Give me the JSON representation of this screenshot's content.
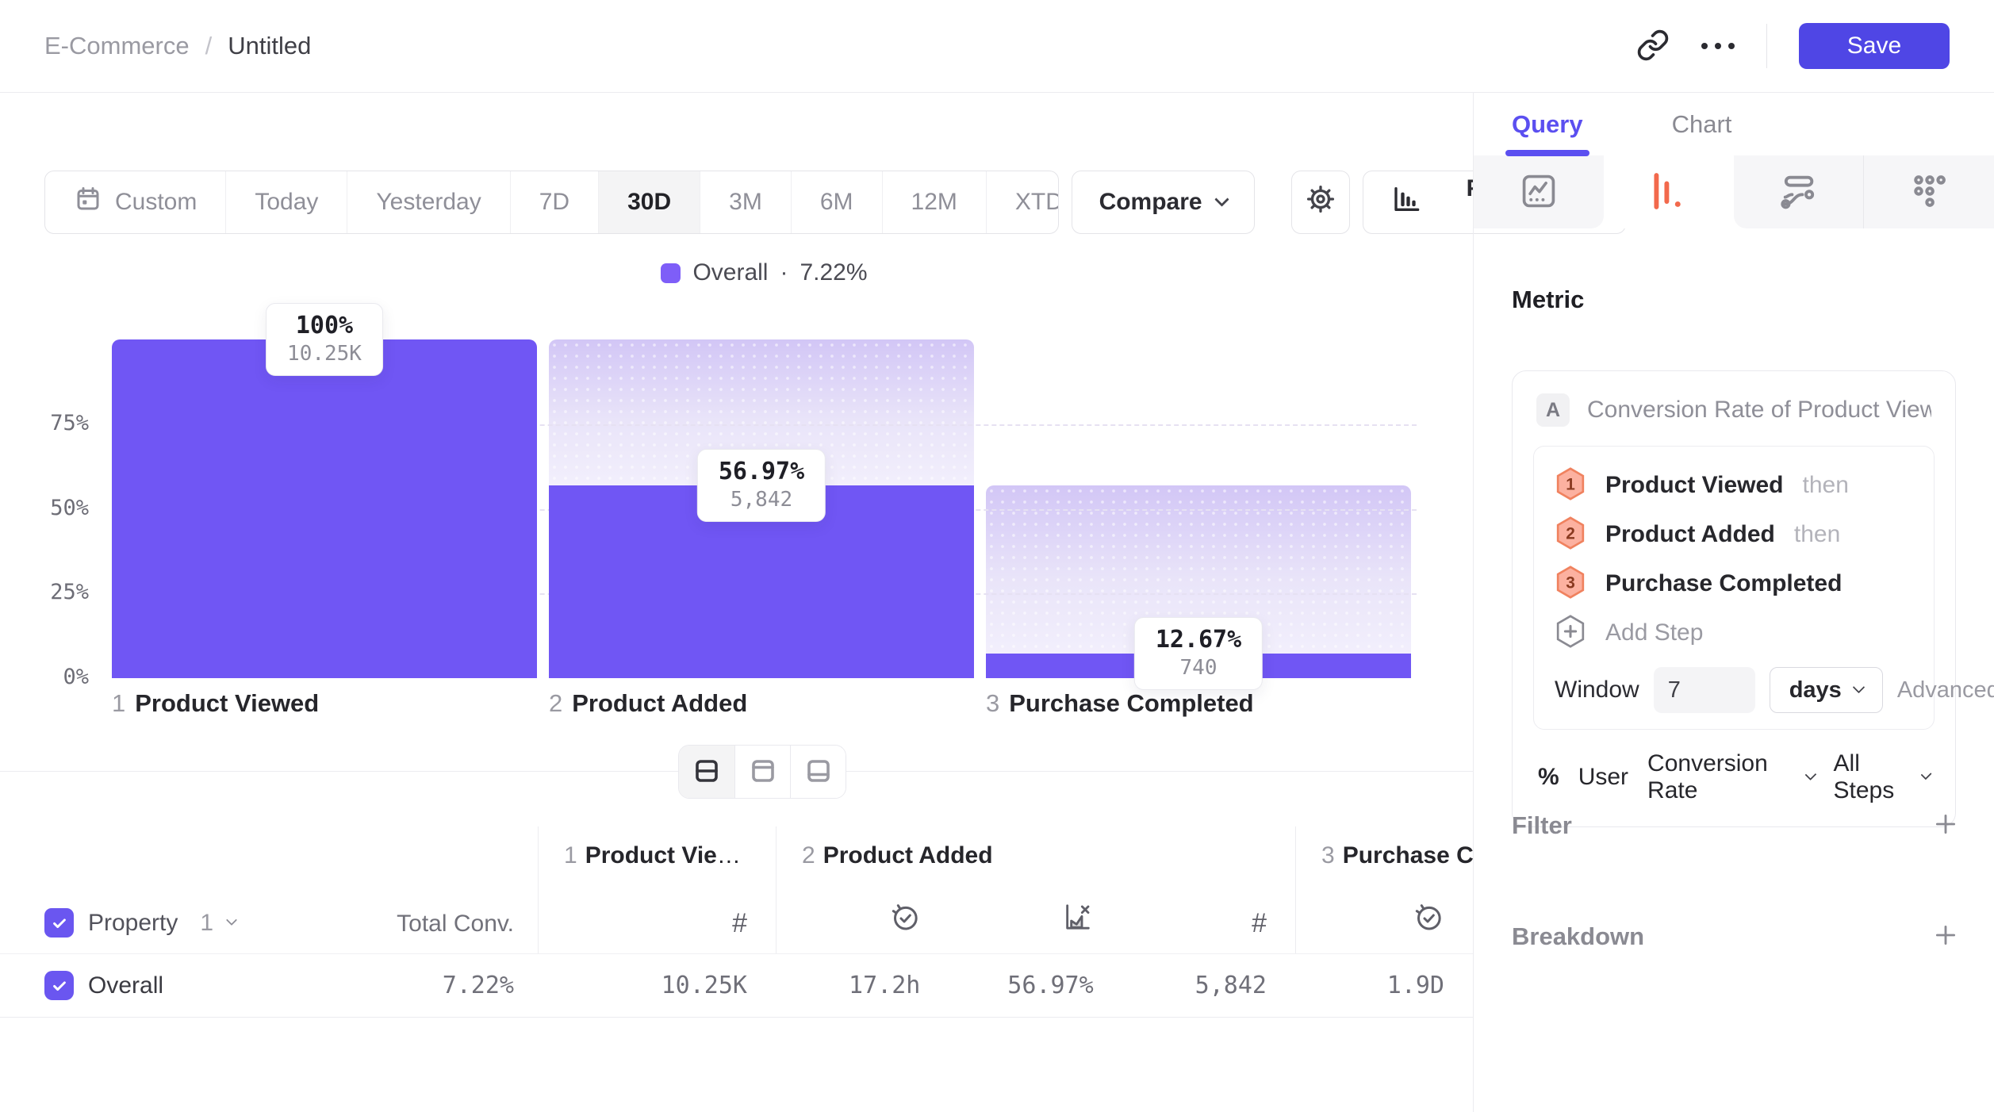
{
  "topbar": {
    "breadcrumb": {
      "parent": "E-Commerce",
      "separator": "/",
      "current": "Untitled"
    },
    "save_label": "Save"
  },
  "toolbar": {
    "date_ranges": [
      "Custom",
      "Today",
      "Yesterday",
      "7D",
      "30D",
      "3M",
      "6M",
      "12M",
      "XTD"
    ],
    "selected_range": "30D",
    "compare_label": "Compare",
    "chart_type_label": "Funnel Steps"
  },
  "legend": {
    "label": "Overall",
    "separator": "·",
    "value": "7.22%"
  },
  "chart": {
    "type": "funnel",
    "y_ticks": [
      "75%",
      "50%",
      "25%",
      "0%"
    ],
    "steps": [
      {
        "index": "1",
        "name": "Product Viewed",
        "conversion_pct": "100%",
        "count_label": "10.25K",
        "count": 10250,
        "overall_pct": 100
      },
      {
        "index": "2",
        "name": "Product Added",
        "conversion_pct": "56.97%",
        "count_label": "5,842",
        "count": 5842,
        "overall_pct": 56.97
      },
      {
        "index": "3",
        "name": "Purchase Completed",
        "conversion_pct": "12.67%",
        "count_label": "740",
        "count": 740,
        "overall_pct": 7.22
      }
    ]
  },
  "table": {
    "property_label": "Property",
    "property_index": "1",
    "total_conv_label": "Total Conv.",
    "columns": [
      {
        "index": "1",
        "name": "Product Viewed"
      },
      {
        "index": "2",
        "name": "Product Added"
      },
      {
        "index": "3",
        "name": "Purchase Completed"
      }
    ],
    "row": {
      "name": "Overall",
      "total_conv": "7.22%",
      "values": [
        "10.25K",
        "17.2h",
        "56.97%",
        "5,842",
        "1.9D"
      ]
    }
  },
  "panel": {
    "tabs": [
      {
        "label": "Query"
      },
      {
        "label": "Chart"
      }
    ],
    "active_tab": "Query",
    "metric_section": {
      "title": "Metric",
      "series_badge": "A",
      "series_title": "Conversion Rate of Product View...",
      "steps": [
        {
          "num": "1",
          "name": "Product Viewed",
          "suffix": "then"
        },
        {
          "num": "2",
          "name": "Product Added",
          "suffix": "then"
        },
        {
          "num": "3",
          "name": "Purchase Completed",
          "suffix": ""
        }
      ],
      "add_step_label": "Add Step",
      "window": {
        "label": "Window",
        "value": "7",
        "unit": "days",
        "advanced_label": "Advanced"
      },
      "measurement": {
        "symbol": "%",
        "entity": "User",
        "metric": "Conversion Rate",
        "scope": "All Steps"
      }
    },
    "filter_label": "Filter",
    "breakdown_label": "Breakdown"
  },
  "colors": {
    "accent": "#4f46e5",
    "query_tab": "#5b4ff0",
    "funnel_bar": "#7056f4",
    "funnel_ghost_top": "#d2c6f6",
    "selected_chart_icon": "#f2694c",
    "step_badge_fill": "#fcb1a0",
    "step_badge_border": "#f0825f"
  }
}
